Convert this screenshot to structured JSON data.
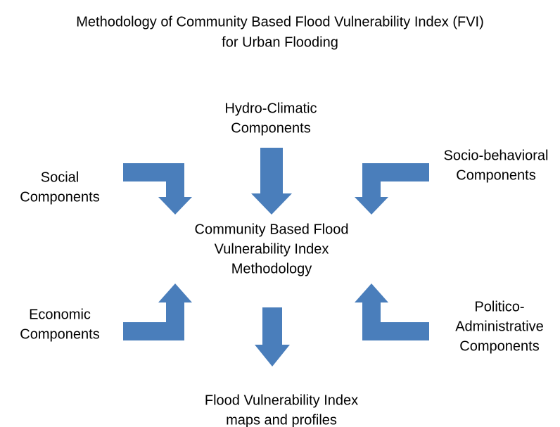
{
  "title": [
    "Methodology  of Community Based Flood Vulnerability Index (FVI)",
    "for Urban Flooding"
  ],
  "nodes": [
    {
      "lines": [
        "Hydro-Climatic",
        "Components"
      ]
    },
    {
      "lines": [
        "Social",
        "Components"
      ]
    },
    {
      "lines": [
        "Socio-behavioral",
        "Components"
      ]
    },
    {
      "lines": [
        "Community Based Flood",
        "Vulnerability Index",
        "Methodology"
      ]
    },
    {
      "lines": [
        "Economic",
        "Components"
      ]
    },
    {
      "lines": [
        "Politico-",
        "Administrative",
        "Components"
      ]
    },
    {
      "lines": [
        "Flood Vulnerability Index",
        "maps and profiles"
      ]
    }
  ]
}
